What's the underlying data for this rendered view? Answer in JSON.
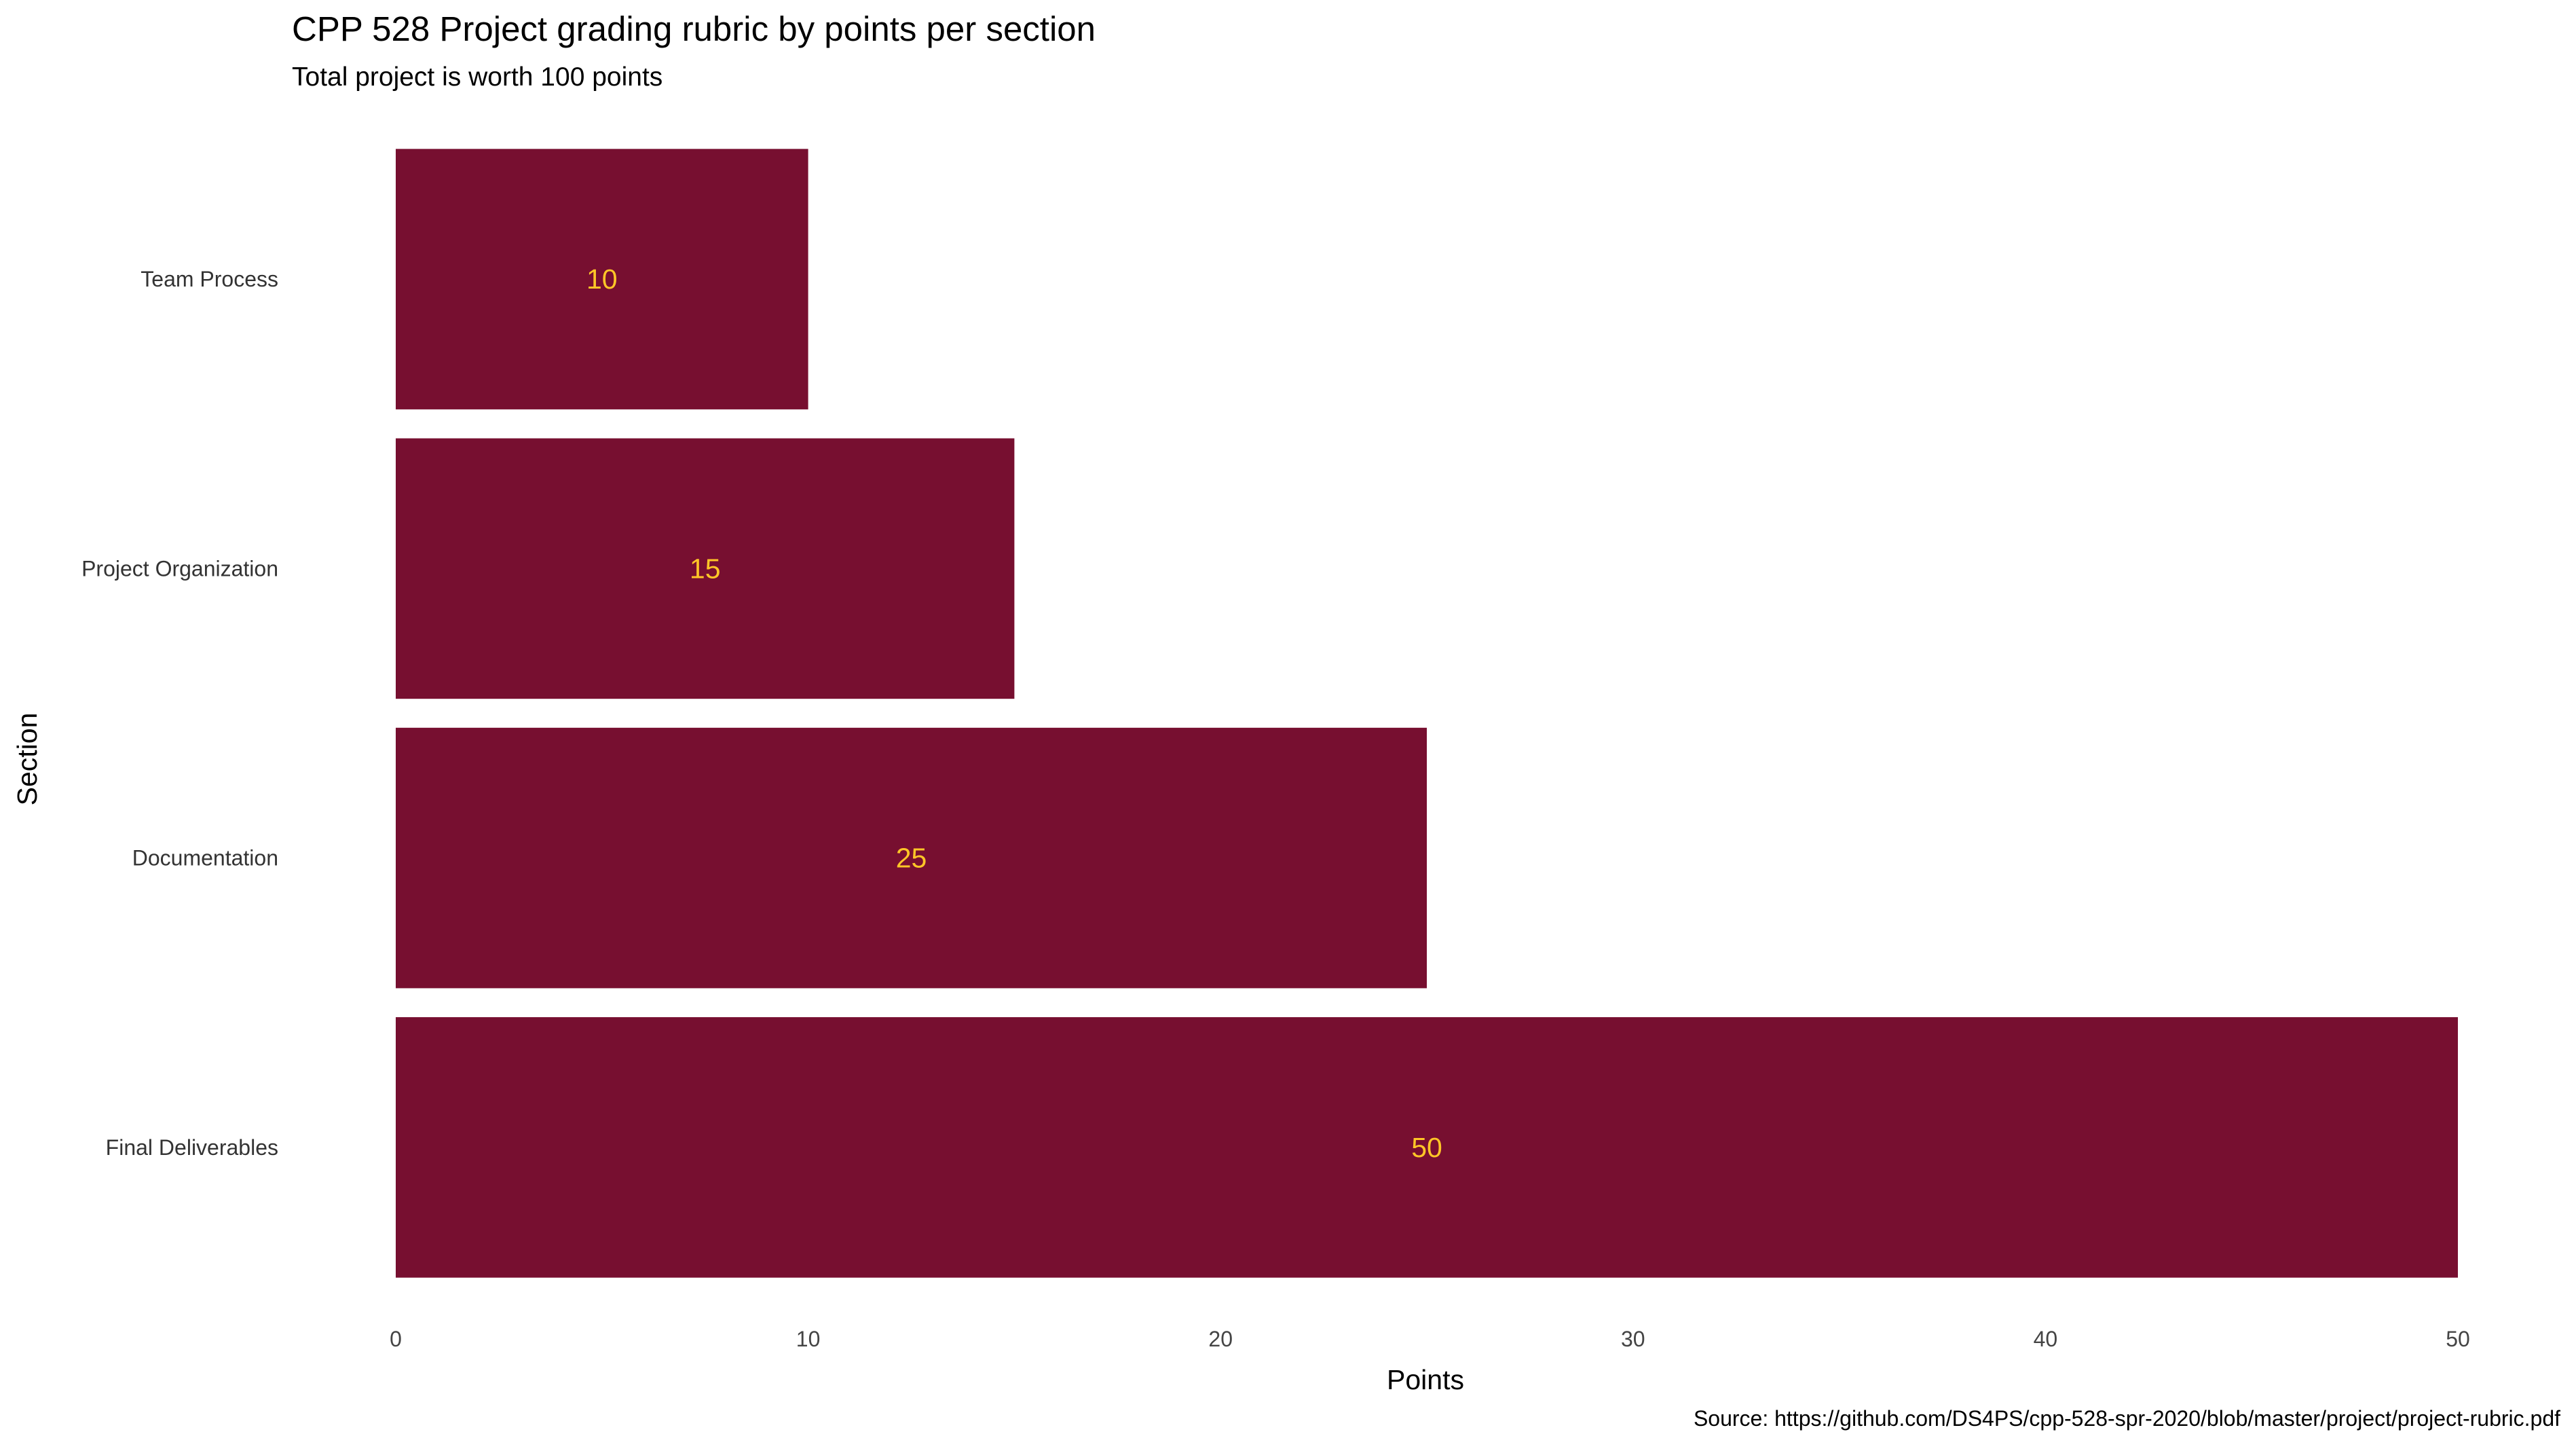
{
  "chart_data": {
    "type": "bar",
    "orientation": "horizontal",
    "title": "CPP 528 Project grading rubric by points per section",
    "subtitle": "Total project is worth 100 points",
    "caption": "Source: https://github.com/DS4PS/cpp-528-spr-2020/blob/master/project/project-rubric.pdf",
    "xlabel": "Points",
    "ylabel": "Section",
    "categories": [
      "Team Process",
      "Project Organization",
      "Documentation",
      "Final Deliverables"
    ],
    "values": [
      10,
      15,
      25,
      50
    ],
    "data_labels": [
      "10",
      "15",
      "25",
      "50"
    ],
    "xlim": [
      0,
      50
    ],
    "x_ticks": [
      0,
      10,
      20,
      30,
      40,
      50
    ],
    "x_tick_labels": [
      "0",
      "10",
      "20",
      "30",
      "40",
      "50"
    ],
    "grid": false,
    "legend": "none",
    "colors": {
      "bar": "#770f30",
      "label": "#ffc627"
    }
  }
}
